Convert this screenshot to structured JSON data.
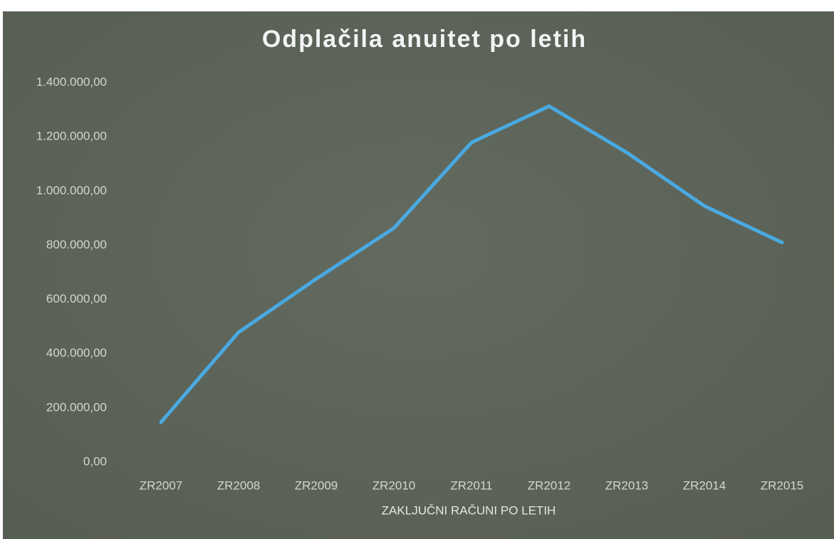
{
  "chart_data": {
    "type": "line",
    "title": "Odplačila anuitet po letih",
    "x_label": "ZAKLJUČNI RAČUNI PO LETIH",
    "categories": [
      "ZR2007",
      "ZR2008",
      "ZR2009",
      "ZR2010",
      "ZR2011",
      "ZR2012",
      "ZR2013",
      "ZR2014",
      "ZR2015"
    ],
    "series": [
      {
        "name": "Odplačila anuitet",
        "color": "#4aa9e1",
        "values": [
          147000,
          479000,
          676000,
          863000,
          1179000,
          1313000,
          1142000,
          945000,
          810000
        ]
      }
    ],
    "ylim": [
      0,
      1400000
    ],
    "yticks": [
      {
        "value": 0,
        "label": "0,00"
      },
      {
        "value": 200000,
        "label": "200.000,00"
      },
      {
        "value": 400000,
        "label": "400.000,00"
      },
      {
        "value": 600000,
        "label": "600.000,00"
      },
      {
        "value": 800000,
        "label": "800.000,00"
      },
      {
        "value": 1000000,
        "label": "1.000.000,00"
      },
      {
        "value": 1200000,
        "label": "1.200.000,00"
      },
      {
        "value": 1400000,
        "label": "1.400.000,00"
      }
    ],
    "grid": false,
    "legend": false
  }
}
